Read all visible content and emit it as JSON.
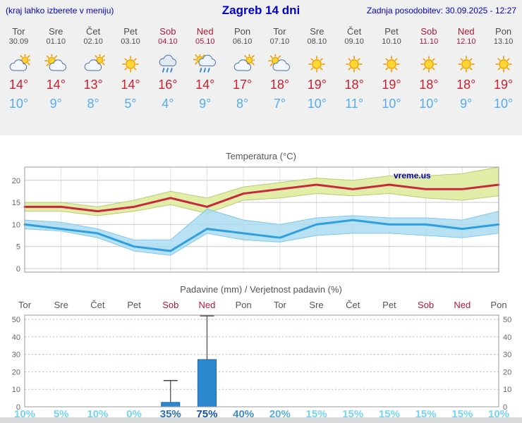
{
  "header": {
    "left_note": "(kraj lahko izberete v meniju)",
    "title": "Zagreb 14 dni",
    "updated": "Zadnja posodobitev: 30.09.2025 - 12:27"
  },
  "colors": {
    "header_blue": "#0000CC",
    "weekend_red": "#B01838",
    "tmax_red": "#CC2030",
    "tmin_blue": "#55ACEE",
    "bar_blue": "#2C89D0",
    "bar_border": "#1B63A8",
    "top_background": "#F0F0F0"
  },
  "watermark": "vreme.us",
  "days": [
    {
      "name": "Tor",
      "date": "30.09",
      "icon": "mostly-cloudy",
      "tmax": "14°",
      "tmin": "10°",
      "weekend": false
    },
    {
      "name": "Sre",
      "date": "01.10",
      "icon": "partly-cloudy",
      "tmax": "14°",
      "tmin": "9°",
      "weekend": false
    },
    {
      "name": "Čet",
      "date": "02.10",
      "icon": "mostly-cloudy",
      "tmax": "13°",
      "tmin": "8°",
      "weekend": false
    },
    {
      "name": "Pet",
      "date": "03.10",
      "icon": "sunny",
      "tmax": "14°",
      "tmin": "5°",
      "weekend": false
    },
    {
      "name": "Sob",
      "date": "04.10",
      "icon": "rain",
      "tmax": "16°",
      "tmin": "4°",
      "weekend": true
    },
    {
      "name": "Ned",
      "date": "05.10",
      "icon": "rain-sun",
      "tmax": "14°",
      "tmin": "9°",
      "weekend": true
    },
    {
      "name": "Pon",
      "date": "06.10",
      "icon": "mostly-cloudy",
      "tmax": "17°",
      "tmin": "8°",
      "weekend": false
    },
    {
      "name": "Tor",
      "date": "07.10",
      "icon": "partly-cloudy",
      "tmax": "18°",
      "tmin": "7°",
      "weekend": false
    },
    {
      "name": "Sre",
      "date": "08.10",
      "icon": "sunny",
      "tmax": "19°",
      "tmin": "10°",
      "weekend": false
    },
    {
      "name": "Čet",
      "date": "09.10",
      "icon": "sunny",
      "tmax": "18°",
      "tmin": "11°",
      "weekend": false
    },
    {
      "name": "Pet",
      "date": "10.10",
      "icon": "sunny",
      "tmax": "19°",
      "tmin": "10°",
      "weekend": false
    },
    {
      "name": "Sob",
      "date": "11.10",
      "icon": "sunny",
      "tmax": "18°",
      "tmin": "10°",
      "weekend": true
    },
    {
      "name": "Ned",
      "date": "12.10",
      "icon": "sunny",
      "tmax": "18°",
      "tmin": "9°",
      "weekend": true
    },
    {
      "name": "Pon",
      "date": "13.10",
      "icon": "sunny",
      "tmax": "19°",
      "tmin": "10°",
      "weekend": false
    }
  ],
  "chart_data": [
    {
      "type": "line",
      "title": "Temperatura (°C)",
      "categories": [
        "Tor 30.09",
        "Sre 01.10",
        "Čet 02.10",
        "Pet 03.10",
        "Sob 04.10",
        "Ned 05.10",
        "Pon 06.10",
        "Tor 07.10",
        "Sre 08.10",
        "Čet 09.10",
        "Pet 10.10",
        "Sob 11.10",
        "Ned 12.10",
        "Pon 13.10"
      ],
      "ylim": [
        -0.8,
        23
      ],
      "yticks": [
        0,
        5,
        10,
        15,
        20
      ],
      "grid": true,
      "series": [
        {
          "name": "max-temperature",
          "color": "#C8283C",
          "values": [
            14,
            14,
            13,
            14,
            16,
            14,
            17,
            18,
            19,
            18,
            19,
            18,
            18,
            19
          ]
        },
        {
          "name": "min-temperature",
          "color": "#2F9FE0",
          "values": [
            10,
            9,
            8,
            5,
            4,
            9,
            8,
            7,
            10,
            11,
            10,
            10,
            9,
            10
          ]
        }
      ],
      "bands": [
        {
          "name": "max-temperature-range",
          "fill": "#E2EDA8",
          "edge": "#B8CC70",
          "opacity": 1,
          "upper": [
            15,
            15,
            14,
            15.5,
            17.5,
            16,
            18.5,
            19.5,
            20.5,
            20,
            21,
            21,
            21.5,
            23
          ],
          "lower": [
            13,
            13,
            12,
            13,
            14.5,
            12.5,
            15.5,
            16,
            17,
            16.5,
            17,
            16,
            15.5,
            16.5
          ]
        },
        {
          "name": "min-temperature-range",
          "fill": "#A8DCF2",
          "edge": "#7FC8EC",
          "opacity": 0.82,
          "upper": [
            11,
            10.5,
            9,
            6.5,
            6.5,
            13.5,
            11,
            10,
            11.5,
            12,
            11.5,
            11.5,
            11,
            13
          ],
          "lower": [
            9,
            8.5,
            7,
            4,
            3,
            8,
            6.5,
            6,
            7.5,
            8,
            8,
            7.5,
            7,
            8
          ]
        }
      ]
    },
    {
      "type": "bar",
      "title": "Padavine (mm) / Verjetnost padavin (%)",
      "categories": [
        "Tor",
        "Sre",
        "Čet",
        "Pet",
        "Sob",
        "Ned",
        "Pon",
        "Tor",
        "Sre",
        "Čet",
        "Pet",
        "Sob",
        "Ned",
        "Pon"
      ],
      "weekend": [
        false,
        false,
        false,
        false,
        true,
        true,
        false,
        false,
        false,
        false,
        false,
        true,
        true,
        false
      ],
      "values_mm": [
        0,
        0,
        0,
        0,
        2.5,
        27,
        0,
        0,
        0,
        0,
        0,
        0,
        0,
        0
      ],
      "whisker_mm": [
        0,
        0,
        0,
        0,
        15,
        52,
        0,
        0,
        0,
        0,
        0,
        0,
        0,
        0
      ],
      "ylim": [
        0,
        52.4
      ],
      "yticks": [
        0,
        10,
        20,
        30,
        40,
        50
      ],
      "probability": [
        {
          "label": "10%",
          "color": "#76D4F0"
        },
        {
          "label": "5%",
          "color": "#76D4F0"
        },
        {
          "label": "10%",
          "color": "#76D4F0"
        },
        {
          "label": "0%",
          "color": "#76D4F0"
        },
        {
          "label": "35%",
          "color": "#2E6FB0"
        },
        {
          "label": "75%",
          "color": "#15519E"
        },
        {
          "label": "40%",
          "color": "#3E8CC8"
        },
        {
          "label": "20%",
          "color": "#57B4DC"
        },
        {
          "label": "15%",
          "color": "#76D4F0"
        },
        {
          "label": "15%",
          "color": "#76D4F0"
        },
        {
          "label": "15%",
          "color": "#76D4F0"
        },
        {
          "label": "15%",
          "color": "#76D4F0"
        },
        {
          "label": "15%",
          "color": "#76D4F0"
        },
        {
          "label": "10%",
          "color": "#76D4F0"
        }
      ]
    }
  ]
}
